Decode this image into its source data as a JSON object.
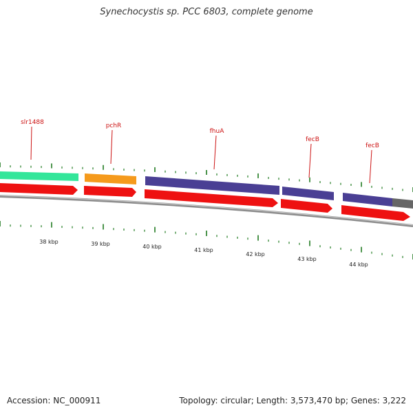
{
  "title": "Synechocystis sp. PCC 6803, complete genome",
  "footer": {
    "accession": "Accession: NC_000911",
    "summary": "Topology: circular; Length: 3,573,470 bp; Genes: 3,222"
  },
  "colors": {
    "backbone": "#8c8c8c",
    "cds": "#ee1111",
    "tick": "#1f7a1f",
    "gene_label": "#cc1111"
  },
  "genes": [
    {
      "name": "slr1488",
      "color": "#33e69a"
    },
    {
      "name": "pchR",
      "color": "#f59a1c"
    },
    {
      "name": "fhuA",
      "color": "#4a3f94"
    },
    {
      "name": "fecB",
      "color": "#4a3f94"
    },
    {
      "name": "fecB",
      "color": "#4a3f94"
    }
  ],
  "gene_tail_color": "#666666",
  "kbp_labels": [
    "38 kbp",
    "39 kbp",
    "40 kbp",
    "41 kbp",
    "42 kbp",
    "43 kbp",
    "44 kbp"
  ]
}
